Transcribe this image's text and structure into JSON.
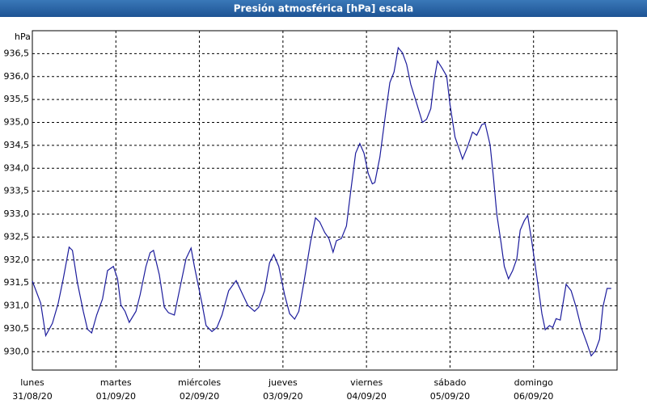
{
  "chart_data": {
    "type": "line",
    "title": "Presión atmosférica [hPa] escala",
    "y_unit": "hPa",
    "xlim": [
      0,
      7
    ],
    "xticks": [
      {
        "value": 0,
        "label": "lunes",
        "date": "31/08/20"
      },
      {
        "value": 1,
        "label": "martes",
        "date": "01/09/20"
      },
      {
        "value": 2,
        "label": "miércoles",
        "date": "02/09/20"
      },
      {
        "value": 3,
        "label": "jueves",
        "date": "03/09/20"
      },
      {
        "value": 4,
        "label": "viernes",
        "date": "04/09/20"
      },
      {
        "value": 5,
        "label": "sábado",
        "date": "05/09/20"
      },
      {
        "value": 6,
        "label": "domingo",
        "date": "06/09/20"
      }
    ],
    "ylim": [
      929.6,
      937.0
    ],
    "yticks": [
      {
        "value": 930.0,
        "label": "930,0"
      },
      {
        "value": 930.5,
        "label": "930,5"
      },
      {
        "value": 931.0,
        "label": "931,0"
      },
      {
        "value": 931.5,
        "label": "931,5"
      },
      {
        "value": 932.0,
        "label": "932,0"
      },
      {
        "value": 932.5,
        "label": "932,5"
      },
      {
        "value": 933.0,
        "label": "933,0"
      },
      {
        "value": 933.5,
        "label": "933,5"
      },
      {
        "value": 934.0,
        "label": "934,0"
      },
      {
        "value": 934.5,
        "label": "934,5"
      },
      {
        "value": 935.0,
        "label": "935,0"
      },
      {
        "value": 935.5,
        "label": "935,5"
      },
      {
        "value": 936.0,
        "label": "936,0"
      },
      {
        "value": 936.5,
        "label": "936,5"
      }
    ],
    "grid": true,
    "series": [
      {
        "color": "#1c1c9c",
        "x": [
          0,
          0.1,
          0.16,
          0.24,
          0.31,
          0.37,
          0.44,
          0.48,
          0.54,
          0.61,
          0.66,
          0.71,
          0.77,
          0.84,
          0.9,
          0.97,
          1.02,
          1.06,
          1.11,
          1.16,
          1.24,
          1.29,
          1.36,
          1.41,
          1.45,
          1.52,
          1.58,
          1.63,
          1.7,
          1.76,
          1.84,
          1.9,
          1.94,
          2.03,
          2.08,
          2.15,
          2.21,
          2.27,
          2.35,
          2.44,
          2.52,
          2.58,
          2.66,
          2.71,
          2.78,
          2.84,
          2.89,
          2.95,
          3.02,
          3.08,
          3.14,
          3.19,
          3.25,
          3.33,
          3.39,
          3.44,
          3.5,
          3.55,
          3.6,
          3.64,
          3.7,
          3.76,
          3.81,
          3.87,
          3.92,
          3.97,
          4.02,
          4.07,
          4.1,
          4.16,
          4.23,
          4.28,
          4.33,
          4.38,
          4.43,
          4.48,
          4.53,
          4.6,
          4.67,
          4.72,
          4.77,
          4.81,
          4.85,
          4.9,
          4.96,
          5.0,
          5.06,
          5.11,
          5.15,
          5.21,
          5.27,
          5.32,
          5.38,
          5.42,
          5.48,
          5.52,
          5.56,
          5.61,
          5.65,
          5.7,
          5.75,
          5.8,
          5.84,
          5.89,
          5.93,
          5.98,
          6.05,
          6.1,
          6.14,
          6.19,
          6.23,
          6.27,
          6.32,
          6.39,
          6.45,
          6.51,
          6.57,
          6.64,
          6.69,
          6.74,
          6.79,
          6.83,
          6.88,
          6.93
        ],
        "values": [
          931.54,
          931.06,
          930.35,
          930.62,
          931.06,
          931.59,
          932.28,
          932.21,
          931.5,
          930.88,
          930.49,
          930.41,
          930.8,
          931.15,
          931.77,
          931.86,
          931.59,
          931.02,
          930.88,
          930.64,
          930.88,
          931.24,
          931.86,
          932.16,
          932.21,
          931.68,
          930.97,
          930.85,
          930.8,
          931.33,
          932.03,
          932.26,
          931.86,
          931.06,
          930.57,
          930.44,
          930.53,
          930.8,
          931.33,
          931.55,
          931.24,
          931.01,
          930.88,
          930.97,
          931.33,
          931.94,
          932.12,
          931.86,
          931.24,
          930.83,
          930.71,
          930.88,
          931.5,
          932.39,
          932.92,
          932.83,
          932.6,
          932.47,
          932.17,
          932.42,
          932.47,
          932.74,
          933.48,
          934.33,
          934.54,
          934.33,
          933.89,
          933.66,
          933.69,
          934.24,
          935.21,
          935.87,
          936.1,
          936.63,
          936.52,
          936.27,
          935.83,
          935.42,
          935.0,
          935.07,
          935.3,
          935.92,
          936.34,
          936.2,
          936.01,
          935.39,
          934.68,
          934.42,
          934.2,
          934.47,
          934.79,
          934.72,
          934.95,
          934.98,
          934.51,
          933.8,
          933.0,
          932.39,
          931.86,
          931.59,
          931.77,
          932.03,
          932.65,
          932.86,
          932.97,
          932.39,
          931.5,
          930.83,
          930.48,
          930.57,
          930.53,
          930.72,
          930.69,
          931.47,
          931.33,
          930.97,
          930.53,
          930.18,
          929.91,
          930.02,
          930.27,
          930.97,
          931.38,
          931.38
        ]
      }
    ]
  }
}
